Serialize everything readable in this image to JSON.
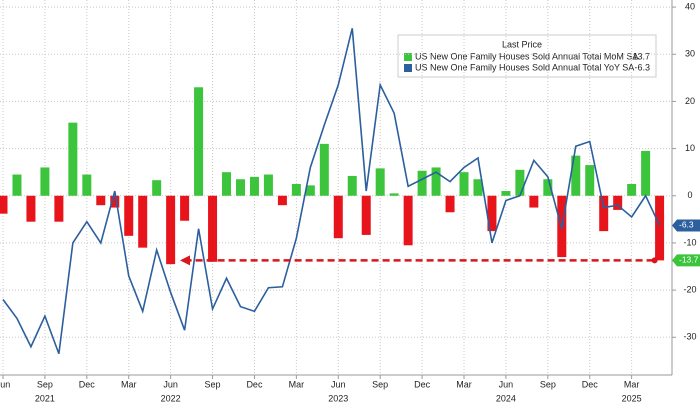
{
  "chart_data": {
    "type": "bar_line",
    "legend_title": "Last Price",
    "categories": [
      "Jun",
      null,
      null,
      "Sep",
      null,
      null,
      "Dec",
      null,
      null,
      "Mar",
      null,
      null,
      "Jun",
      null,
      null,
      "Sep",
      null,
      null,
      "Dec",
      null,
      null,
      "Mar",
      null,
      null,
      "Jun",
      null,
      null,
      "Sep",
      null,
      null,
      "Dec",
      null,
      null,
      "Mar",
      null,
      null,
      "Jun",
      null,
      null,
      "Sep",
      null,
      null,
      "Dec",
      null,
      null,
      "Mar",
      null,
      null
    ],
    "years": [
      "2021",
      "2022",
      "2023",
      "2024",
      "2025"
    ],
    "series": [
      {
        "name": "US New One Family Houses Sold Annual Total MoM SA",
        "kind": "bar",
        "color": "#3cc43c",
        "negative_color": "#e8141b",
        "values": [
          -3.8,
          4.5,
          -5.5,
          6,
          -5.5,
          15.5,
          4.5,
          -2,
          -2.5,
          -8.5,
          -11,
          3.3,
          -14.5,
          -5.3,
          23,
          -14,
          5,
          3.5,
          4,
          4.5,
          -2,
          2.5,
          2.2,
          11,
          -9,
          4.2,
          -8.3,
          5.8,
          0.5,
          -10.5,
          5.3,
          6,
          -3.5,
          5,
          3.5,
          -7.5,
          1,
          5.5,
          -2.5,
          3.5,
          -13,
          8.5,
          6.5,
          -7.5,
          -3,
          2.5,
          9.5,
          -13.7
        ]
      },
      {
        "name": "US New One Family Houses Sold Annual Total YoY SA",
        "kind": "line",
        "color": "#2b5f9e",
        "values": [
          -22,
          -26,
          -32,
          -25.5,
          -33.5,
          -10,
          -5.5,
          -10,
          1,
          -17,
          -24.5,
          -11.5,
          -20.5,
          -28.5,
          -7,
          -24,
          -17.5,
          -23.5,
          -24.5,
          -19.5,
          -19.3,
          -9,
          6,
          15,
          23.5,
          35.5,
          1,
          23.5,
          17.5,
          2,
          3.5,
          5,
          3,
          6,
          8,
          -10,
          -1,
          0,
          7.5,
          4,
          -7,
          10.5,
          11.5,
          -2.5,
          -2,
          -4.5,
          0,
          -6.3
        ]
      }
    ],
    "ylim": [
      -38,
      41.5
    ],
    "yticks": [
      40,
      30,
      20,
      10,
      0,
      -10,
      -20,
      -30
    ],
    "grid": true
  }
}
